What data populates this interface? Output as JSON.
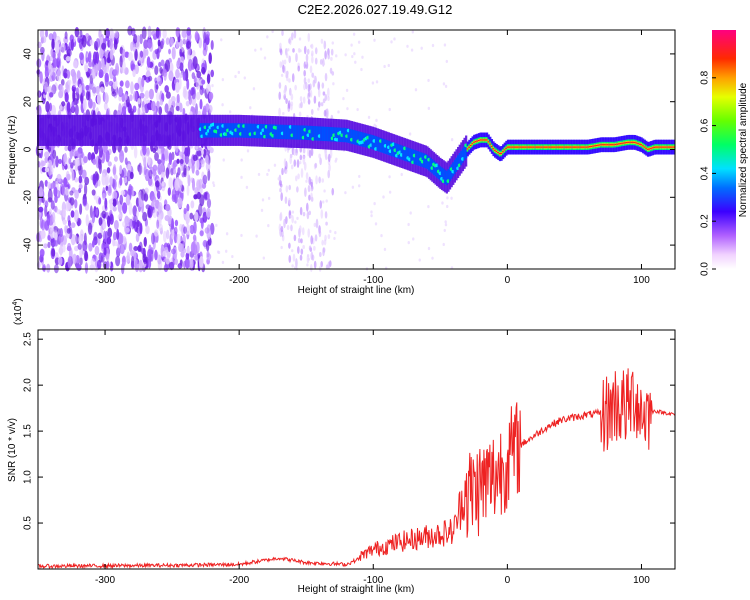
{
  "title": "C2E2.2026.027.19.49.G12",
  "chart_data": [
    {
      "type": "heatmap",
      "name": "spectrogram",
      "xlabel": "Height of straight line (km)",
      "ylabel": "Frequency (Hz)",
      "xlim": [
        -350,
        125
      ],
      "ylim": [
        -50,
        50
      ],
      "xticks": [
        -300,
        -200,
        -100,
        0,
        100
      ],
      "yticks": [
        -40,
        -20,
        0,
        20,
        40
      ],
      "ridge": {
        "x": [
          -350,
          -300,
          -250,
          -220,
          -200,
          -150,
          -120,
          -100,
          -80,
          -60,
          -50,
          -45,
          -40,
          -35,
          -30,
          -25,
          -20,
          -15,
          -10,
          -5,
          0,
          20,
          40,
          60,
          70,
          80,
          90,
          95,
          100,
          105,
          110,
          125
        ],
        "y": [
          8,
          8,
          8,
          8,
          8,
          7,
          6,
          3,
          -1,
          -5,
          -10,
          -12,
          -8,
          -4,
          0,
          3,
          4,
          4,
          0,
          -2,
          1,
          1,
          1,
          1,
          2,
          2,
          3,
          3,
          2,
          0,
          1,
          1
        ]
      },
      "noisy_x_range": [
        -350,
        -220
      ],
      "noise_band_x_range": [
        -170,
        -130
      ],
      "colorbar": {
        "label": "Normalized spectral amplitude",
        "range": [
          0.0,
          1.0
        ],
        "ticks": [
          "0.0",
          "0.2",
          "0.4",
          "0.6",
          "0.8"
        ],
        "tick_values": [
          0.0,
          0.2,
          0.4,
          0.6,
          0.8
        ]
      }
    },
    {
      "type": "line",
      "name": "snr",
      "xlabel": "Height of straight line (km)",
      "ylabel": "SNR (10 * v/v)",
      "multiplier_label": "(x10",
      "multiplier_exp": "4",
      "xlim": [
        -350,
        125
      ],
      "ylim": [
        0,
        2.6
      ],
      "xticks": [
        -300,
        -200,
        -100,
        0,
        100
      ],
      "yticks": [
        "0.5",
        "1.0",
        "1.5",
        "2.0",
        "2.5"
      ],
      "ytick_values": [
        0.5,
        1.0,
        1.5,
        2.0,
        2.5
      ],
      "color": "#ee2222",
      "envelope": {
        "x": [
          -350,
          -250,
          -200,
          -170,
          -150,
          -120,
          -100,
          -80,
          -60,
          -40,
          -30,
          -20,
          -10,
          0,
          10,
          20,
          30,
          40,
          60,
          75,
          80,
          90,
          95,
          100,
          105,
          110,
          125
        ],
        "y": [
          0.03,
          0.04,
          0.05,
          0.12,
          0.07,
          0.05,
          0.18,
          0.25,
          0.3,
          0.35,
          0.8,
          0.9,
          1.0,
          1.2,
          1.35,
          1.45,
          1.55,
          1.62,
          1.68,
          1.7,
          1.8,
          1.75,
          1.9,
          1.7,
          1.7,
          1.72,
          1.68
        ]
      }
    }
  ]
}
